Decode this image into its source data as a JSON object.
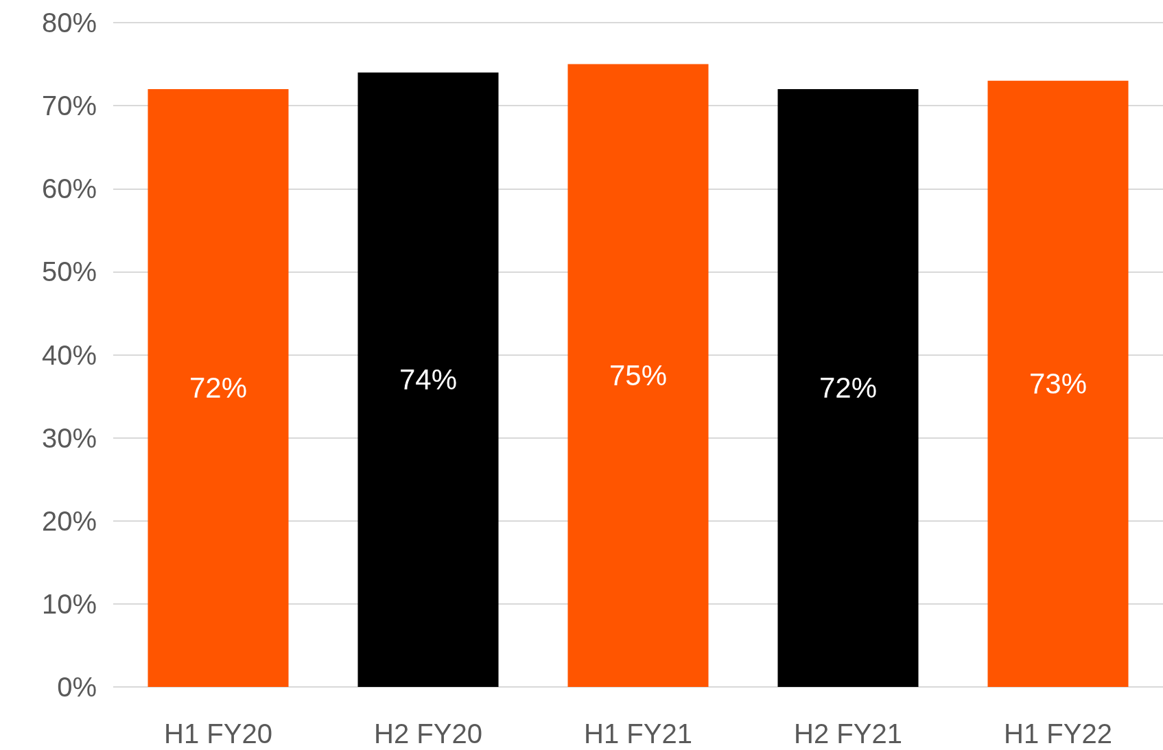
{
  "chart_data": {
    "type": "bar",
    "categories": [
      "H1 FY20",
      "H2 FY20",
      "H1 FY21",
      "H2 FY21",
      "H1 FY22"
    ],
    "values": [
      72,
      74,
      75,
      72,
      73
    ],
    "colors": [
      "#ff5500",
      "#000000",
      "#ff5500",
      "#000000",
      "#ff5500"
    ],
    "value_labels": [
      "72%",
      "74%",
      "75%",
      "72%",
      "73%"
    ],
    "ylim": [
      0,
      80
    ],
    "yticks": [
      {
        "value": 0,
        "label": "0%"
      },
      {
        "value": 10,
        "label": "10%"
      },
      {
        "value": 20,
        "label": "20%"
      },
      {
        "value": 30,
        "label": "30%"
      },
      {
        "value": 40,
        "label": "40%"
      },
      {
        "value": 50,
        "label": "50%"
      },
      {
        "value": 60,
        "label": "60%"
      },
      {
        "value": 70,
        "label": "70%"
      },
      {
        "value": 80,
        "label": "80%"
      }
    ],
    "grid": "y"
  }
}
